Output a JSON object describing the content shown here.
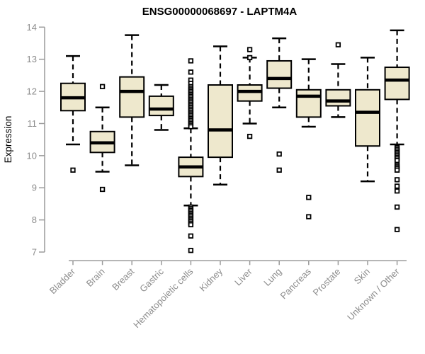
{
  "chart_data": {
    "type": "boxplot",
    "title": "ENSG00000068697 - LAPTM4A",
    "ylabel": "Expression",
    "xlabel": "",
    "ylim": [
      7,
      14
    ],
    "yticks": [
      14,
      13,
      12,
      11,
      10,
      9,
      8,
      7
    ],
    "grid": false,
    "legend": "none",
    "categories": [
      "Bladder",
      "Brain",
      "Breast",
      "Gastric",
      "Hematopoietic cells",
      "Kidney",
      "Liver",
      "Lung",
      "Pancreas",
      "Prostate",
      "Skin",
      "Unknown / Other"
    ],
    "boxes": [
      {
        "category": "Bladder",
        "whisker_low": 10.35,
        "q1": 11.4,
        "median": 11.8,
        "q3": 12.25,
        "whisker_high": 13.1,
        "outliers": [
          9.55
        ]
      },
      {
        "category": "Brain",
        "whisker_low": 9.5,
        "q1": 10.1,
        "median": 10.4,
        "q3": 10.75,
        "whisker_high": 11.5,
        "outliers": [
          12.15,
          8.95
        ]
      },
      {
        "category": "Breast",
        "whisker_low": 9.7,
        "q1": 11.2,
        "median": 12.0,
        "q3": 12.45,
        "whisker_high": 13.75,
        "outliers": []
      },
      {
        "category": "Gastric",
        "whisker_low": 10.8,
        "q1": 11.25,
        "median": 11.45,
        "q3": 11.85,
        "whisker_high": 12.2,
        "outliers": []
      },
      {
        "category": "Hematopoietic cells",
        "whisker_low": 8.45,
        "q1": 9.35,
        "median": 9.65,
        "q3": 9.95,
        "whisker_high": 10.85,
        "outliers": [
          12.95,
          12.6,
          12.35,
          12.25,
          12.15,
          12.1,
          12.05,
          12.0,
          11.95,
          11.9,
          11.85,
          11.8,
          11.75,
          11.7,
          11.65,
          11.6,
          11.55,
          11.5,
          11.45,
          11.4,
          11.35,
          11.3,
          11.25,
          11.2,
          11.15,
          11.1,
          11.05,
          11.0,
          10.95,
          10.9,
          8.4,
          8.35,
          8.3,
          8.25,
          8.2,
          8.15,
          8.1,
          8.05,
          8.0,
          7.95,
          7.9,
          7.85,
          7.5,
          7.05
        ]
      },
      {
        "category": "Kidney",
        "whisker_low": 9.1,
        "q1": 9.95,
        "median": 10.8,
        "q3": 12.2,
        "whisker_high": 13.4,
        "outliers": []
      },
      {
        "category": "Liver",
        "whisker_low": 11.0,
        "q1": 11.7,
        "median": 12.0,
        "q3": 12.2,
        "whisker_high": 13.05,
        "outliers": [
          13.3,
          13.05,
          10.6
        ]
      },
      {
        "category": "Lung",
        "whisker_low": 11.5,
        "q1": 12.1,
        "median": 12.4,
        "q3": 12.95,
        "whisker_high": 13.65,
        "outliers": [
          10.05,
          9.55
        ]
      },
      {
        "category": "Pancreas",
        "whisker_low": 10.9,
        "q1": 11.2,
        "median": 11.85,
        "q3": 12.05,
        "whisker_high": 13.0,
        "outliers": [
          8.7,
          8.1
        ]
      },
      {
        "category": "Prostate",
        "whisker_low": 11.2,
        "q1": 11.55,
        "median": 11.7,
        "q3": 12.05,
        "whisker_high": 12.85,
        "outliers": [
          13.45
        ]
      },
      {
        "category": "Skin",
        "whisker_low": 9.2,
        "q1": 10.3,
        "median": 11.35,
        "q3": 12.05,
        "whisker_high": 13.05,
        "outliers": []
      },
      {
        "category": "Unknown / Other",
        "whisker_low": 10.35,
        "q1": 11.75,
        "median": 12.35,
        "q3": 12.75,
        "whisker_high": 13.9,
        "outliers": [
          10.25,
          10.2,
          10.15,
          10.1,
          10.05,
          10.0,
          9.95,
          9.9,
          9.85,
          9.7,
          9.65,
          9.6,
          9.55,
          9.25,
          9.05,
          8.9,
          8.4,
          7.7
        ]
      }
    ]
  },
  "colors": {
    "box_fill": "#EEE8CD",
    "box_stroke": "#000000",
    "median": "#000000",
    "axis_line": "#9a9a9a",
    "text_gray": "#8c8c8c",
    "title": "#111111",
    "background": "#FFFFFF"
  }
}
